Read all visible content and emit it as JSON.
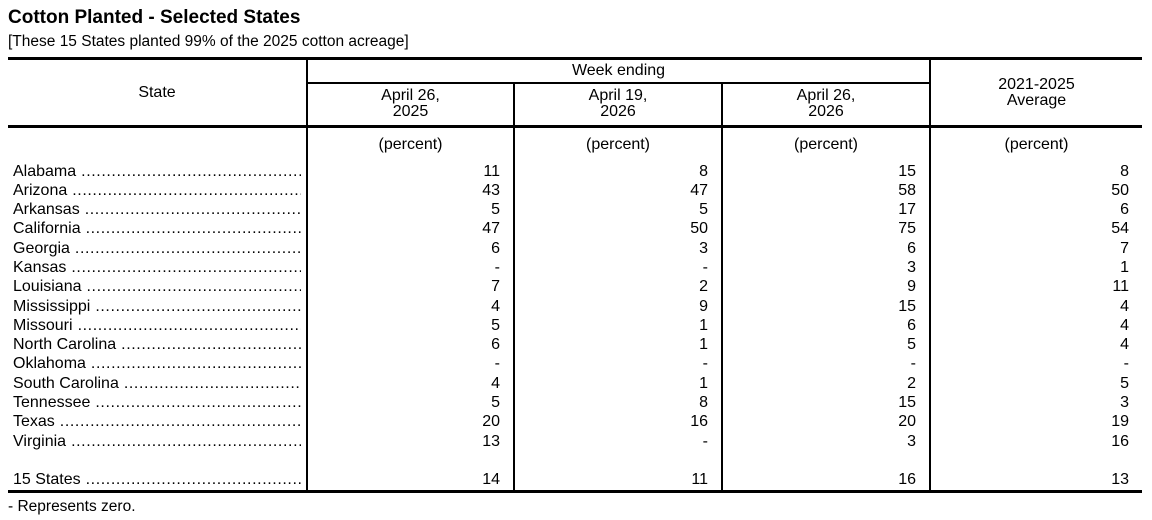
{
  "title": "Cotton Planted - Selected States",
  "subtitle": "[These 15 States planted 99% of the 2025 cotton acreage]",
  "footnote": "- Represents zero.",
  "table": {
    "corner_header": "State",
    "group_header": "Week ending",
    "date_columns": [
      {
        "line1": "April 26,",
        "line2": "2025"
      },
      {
        "line1": "April 19,",
        "line2": "2026"
      },
      {
        "line1": "April 26,",
        "line2": "2026"
      }
    ],
    "average_column": {
      "line1": "2021-2025",
      "line2": "Average"
    },
    "unit_label": "(percent)",
    "rows": [
      {
        "state": "Alabama",
        "values": [
          "11",
          "8",
          "15",
          "8"
        ]
      },
      {
        "state": "Arizona",
        "values": [
          "43",
          "47",
          "58",
          "50"
        ]
      },
      {
        "state": "Arkansas",
        "values": [
          "5",
          "5",
          "17",
          "6"
        ]
      },
      {
        "state": "California",
        "values": [
          "47",
          "50",
          "75",
          "54"
        ]
      },
      {
        "state": "Georgia",
        "values": [
          "6",
          "3",
          "6",
          "7"
        ]
      },
      {
        "state": "Kansas",
        "values": [
          "-",
          "-",
          "3",
          "1"
        ]
      },
      {
        "state": "Louisiana",
        "values": [
          "7",
          "2",
          "9",
          "11"
        ]
      },
      {
        "state": "Mississippi",
        "values": [
          "4",
          "9",
          "15",
          "4"
        ]
      },
      {
        "state": "Missouri",
        "values": [
          "5",
          "1",
          "6",
          "4"
        ]
      },
      {
        "state": "North Carolina",
        "values": [
          "6",
          "1",
          "5",
          "4"
        ]
      },
      {
        "state": "Oklahoma",
        "values": [
          "-",
          "-",
          "-",
          "-"
        ]
      },
      {
        "state": "South Carolina",
        "values": [
          "4",
          "1",
          "2",
          "5"
        ]
      },
      {
        "state": "Tennessee",
        "values": [
          "5",
          "8",
          "15",
          "3"
        ]
      },
      {
        "state": "Texas",
        "values": [
          "20",
          "16",
          "20",
          "19"
        ]
      },
      {
        "state": "Virginia",
        "values": [
          "13",
          "-",
          "3",
          "16"
        ]
      }
    ],
    "total_row": {
      "state": "15 States",
      "values": [
        "14",
        "11",
        "16",
        "13"
      ]
    }
  },
  "chart_data": {
    "type": "table",
    "title": "Cotton Planted - Selected States",
    "columns": [
      "State",
      "April 26, 2025 (percent)",
      "April 19, 2026 (percent)",
      "April 26, 2026 (percent)",
      "2021-2025 Average (percent)"
    ],
    "rows": [
      [
        "Alabama",
        11,
        8,
        15,
        8
      ],
      [
        "Arizona",
        43,
        47,
        58,
        50
      ],
      [
        "Arkansas",
        5,
        5,
        17,
        6
      ],
      [
        "California",
        47,
        50,
        75,
        54
      ],
      [
        "Georgia",
        6,
        3,
        6,
        7
      ],
      [
        "Kansas",
        null,
        null,
        3,
        1
      ],
      [
        "Louisiana",
        7,
        2,
        9,
        11
      ],
      [
        "Mississippi",
        4,
        9,
        15,
        4
      ],
      [
        "Missouri",
        5,
        1,
        6,
        4
      ],
      [
        "North Carolina",
        6,
        1,
        5,
        4
      ],
      [
        "Oklahoma",
        null,
        null,
        null,
        null
      ],
      [
        "South Carolina",
        4,
        1,
        2,
        5
      ],
      [
        "Tennessee",
        5,
        8,
        15,
        3
      ],
      [
        "Texas",
        20,
        16,
        20,
        19
      ],
      [
        "Virginia",
        13,
        null,
        3,
        16
      ],
      [
        "15 States",
        14,
        11,
        16,
        13
      ]
    ],
    "note": "null = '-' (represents zero)"
  }
}
